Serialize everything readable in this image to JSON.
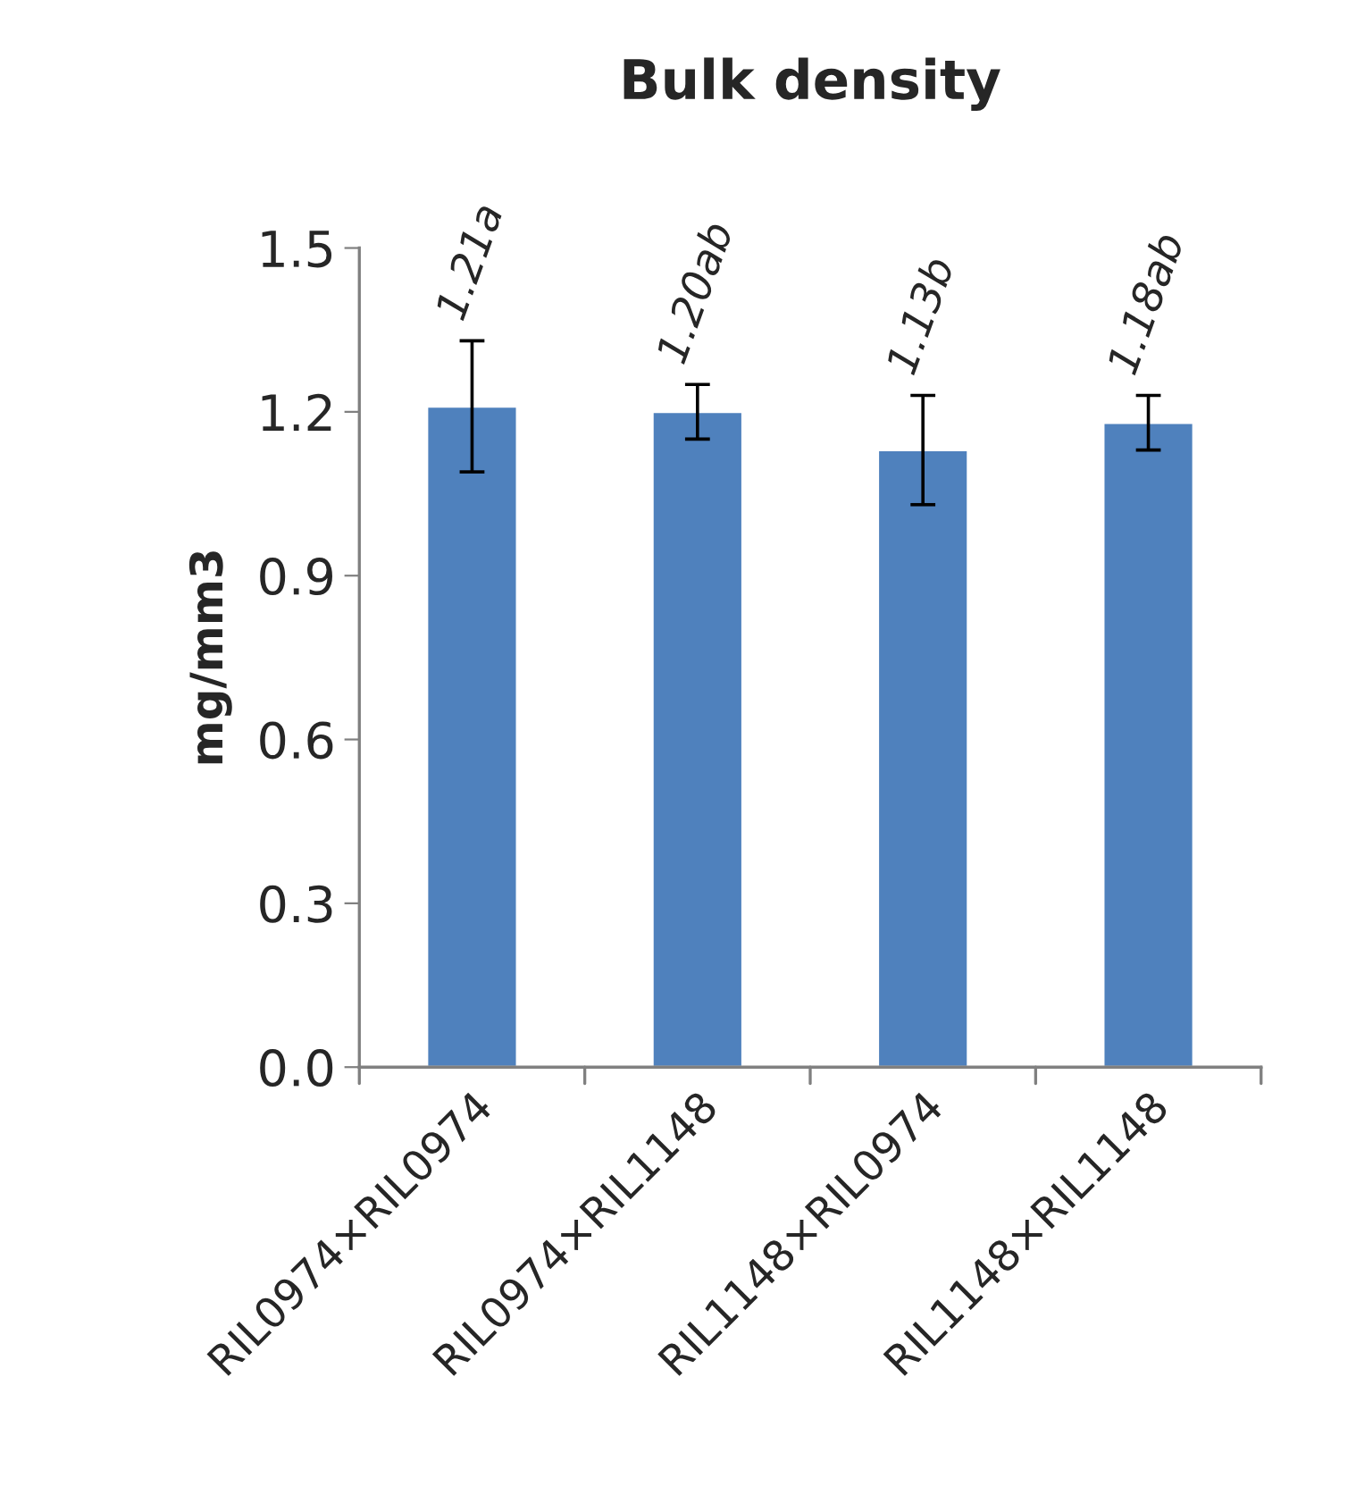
{
  "chart_data": {
    "type": "bar",
    "title": "Bulk density",
    "ylabel": "mg/mm3",
    "categories": [
      "RIL0974×RIL0974",
      "RIL0974×RIL1148",
      "RIL1148×RIL0974",
      "RIL1148×RIL1148"
    ],
    "values": [
      1.21,
      1.2,
      1.13,
      1.18
    ],
    "color": "#4f81bd",
    "errors": [
      0.12,
      0.05,
      0.1,
      0.05
    ],
    "value_labels": [
      "1.21a",
      "1.20ab",
      "1.13b",
      "1.18ab"
    ],
    "ylim": [
      0,
      1.5
    ],
    "yticks": [
      {
        "value": 0,
        "label": "0.0"
      },
      0.3,
      0.6,
      0.9,
      1.2,
      1.5
    ],
    "grid": false
  }
}
